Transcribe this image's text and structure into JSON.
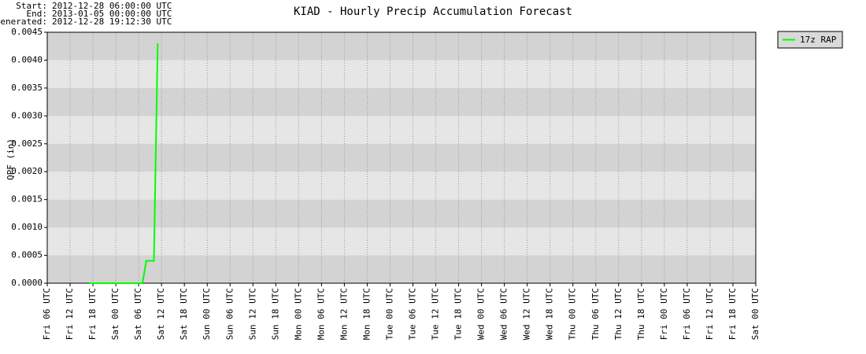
{
  "chart_data": {
    "type": "line",
    "title": "KIAD - Hourly Precip Accumulation Forecast",
    "info": [
      {
        "label": "Start:",
        "value": "2012-12-28 06:00:00 UTC"
      },
      {
        "label": "End:",
        "value": "2013-01-05 00:00:00 UTC"
      },
      {
        "label": "Generated:",
        "value": "2012-12-28 19:12:30 UTC"
      }
    ],
    "y_label": "QPF (in)",
    "x": [
      11,
      12,
      13,
      14,
      15,
      16,
      17,
      18,
      19,
      20,
      21,
      22,
      23,
      24,
      25,
      26,
      27,
      28,
      29
    ],
    "series": [
      {
        "name": "17z RAP",
        "color": "#00ff00",
        "values": [
          0,
          0,
          0,
          0,
          0,
          0,
          0,
          0,
          0,
          0,
          0,
          0,
          0,
          0,
          0,
          0.0004,
          0.0004,
          0.0004,
          0.0043
        ]
      }
    ],
    "xlim": [
      0,
      186
    ],
    "xticks": [
      {
        "value": 0,
        "label": "Fri 06 UTC"
      },
      {
        "value": 6,
        "label": "Fri 12 UTC"
      },
      {
        "value": 12,
        "label": "Fri 18 UTC"
      },
      {
        "value": 18,
        "label": "Sat 00 UTC"
      },
      {
        "value": 24,
        "label": "Sat 06 UTC"
      },
      {
        "value": 30,
        "label": "Sat 12 UTC"
      },
      {
        "value": 36,
        "label": "Sat 18 UTC"
      },
      {
        "value": 42,
        "label": "Sun 00 UTC"
      },
      {
        "value": 48,
        "label": "Sun 06 UTC"
      },
      {
        "value": 54,
        "label": "Sun 12 UTC"
      },
      {
        "value": 60,
        "label": "Sun 18 UTC"
      },
      {
        "value": 66,
        "label": "Mon 00 UTC"
      },
      {
        "value": 72,
        "label": "Mon 06 UTC"
      },
      {
        "value": 78,
        "label": "Mon 12 UTC"
      },
      {
        "value": 84,
        "label": "Mon 18 UTC"
      },
      {
        "value": 90,
        "label": "Tue 00 UTC"
      },
      {
        "value": 96,
        "label": "Tue 06 UTC"
      },
      {
        "value": 102,
        "label": "Tue 12 UTC"
      },
      {
        "value": 108,
        "label": "Tue 18 UTC"
      },
      {
        "value": 114,
        "label": "Wed 00 UTC"
      },
      {
        "value": 120,
        "label": "Wed 06 UTC"
      },
      {
        "value": 126,
        "label": "Wed 12 UTC"
      },
      {
        "value": 132,
        "label": "Wed 18 UTC"
      },
      {
        "value": 138,
        "label": "Thu 00 UTC"
      },
      {
        "value": 144,
        "label": "Thu 06 UTC"
      },
      {
        "value": 150,
        "label": "Thu 12 UTC"
      },
      {
        "value": 156,
        "label": "Thu 18 UTC"
      },
      {
        "value": 162,
        "label": "Fri 00 UTC"
      },
      {
        "value": 168,
        "label": "Fri 06 UTC"
      },
      {
        "value": 174,
        "label": "Fri 12 UTC"
      },
      {
        "value": 180,
        "label": "Fri 18 UTC"
      },
      {
        "value": 186,
        "label": "Sat 00 UTC"
      }
    ],
    "ylim": [
      0,
      0.0045
    ],
    "yticks": [
      {
        "value": 0,
        "label": "0.0000"
      },
      0.0005,
      {
        "value": 0.001,
        "label": "0.0010"
      },
      0.0015,
      {
        "value": 0.002,
        "label": "0.0020"
      },
      0.0025,
      {
        "value": 0.003,
        "label": "0.0030"
      },
      0.0035,
      {
        "value": 0.004,
        "label": "0.0040"
      },
      0.0045
    ],
    "grid": true,
    "legend": "outside-right"
  }
}
